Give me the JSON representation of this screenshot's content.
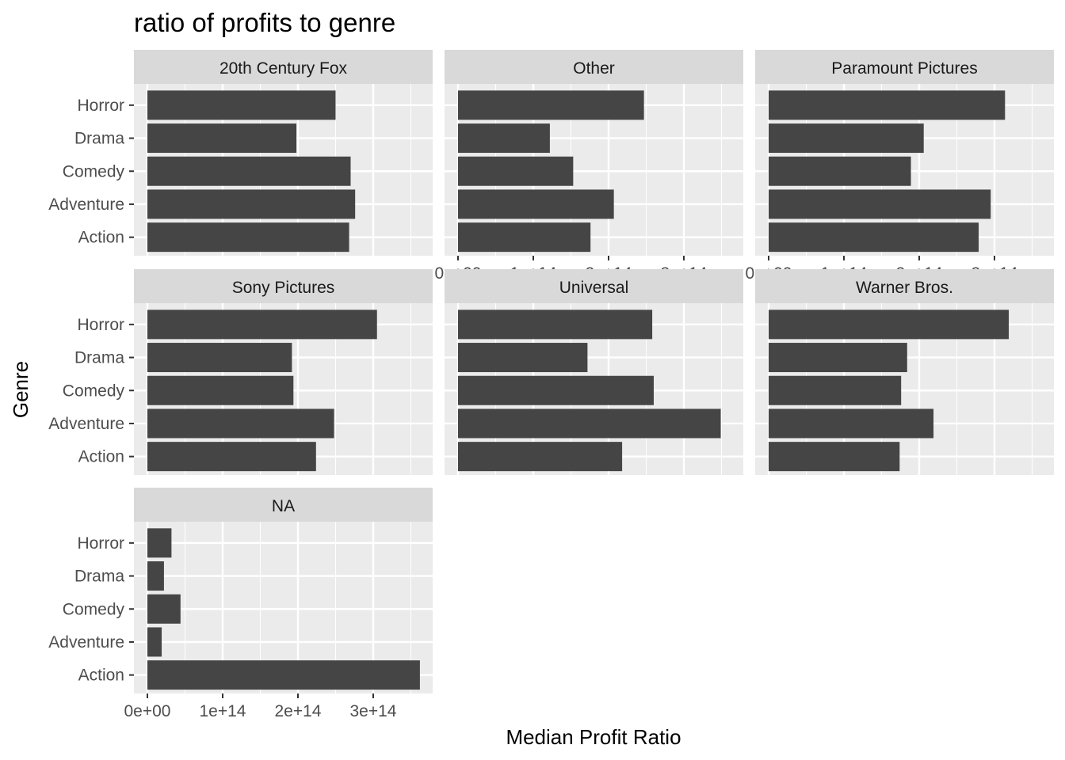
{
  "chart_data": {
    "type": "bar",
    "orientation": "horizontal",
    "title": "ratio of profits to genre",
    "xlabel": "Median Profit Ratio",
    "ylabel": "Genre",
    "xlim": [
      0,
      380000000000000.0
    ],
    "x_ticks": [
      0,
      100000000000000.0,
      200000000000000.0,
      300000000000000.0
    ],
    "x_tick_labels": [
      "0e+00",
      "1e+14",
      "2e+14",
      "3e+14"
    ],
    "categories": [
      "Action",
      "Adventure",
      "Comedy",
      "Drama",
      "Horror"
    ],
    "grid": true,
    "facets": [
      {
        "name": "20th Century Fox",
        "values": [
          268000000000000.0,
          276000000000000.0,
          270000000000000.0,
          198000000000000.0,
          250000000000000.0
        ]
      },
      {
        "name": "Other",
        "values": [
          176000000000000.0,
          207000000000000.0,
          153000000000000.0,
          122000000000000.0,
          247000000000000.0
        ]
      },
      {
        "name": "Paramount Pictures",
        "values": [
          279000000000000.0,
          295000000000000.0,
          189000000000000.0,
          206000000000000.0,
          314000000000000.0
        ]
      },
      {
        "name": "Sony Pictures",
        "values": [
          224000000000000.0,
          248000000000000.0,
          194000000000000.0,
          192000000000000.0,
          305000000000000.0
        ]
      },
      {
        "name": "Universal",
        "values": [
          218000000000000.0,
          349000000000000.0,
          260000000000000.0,
          172000000000000.0,
          258000000000000.0
        ]
      },
      {
        "name": "Warner Bros.",
        "values": [
          174000000000000.0,
          219000000000000.0,
          176000000000000.0,
          184000000000000.0,
          319000000000000.0
        ]
      },
      {
        "name": "NA",
        "values": [
          362000000000000.0,
          19000000000000.0,
          44000000000000.0,
          22000000000000.0,
          32000000000000.0
        ]
      }
    ]
  }
}
